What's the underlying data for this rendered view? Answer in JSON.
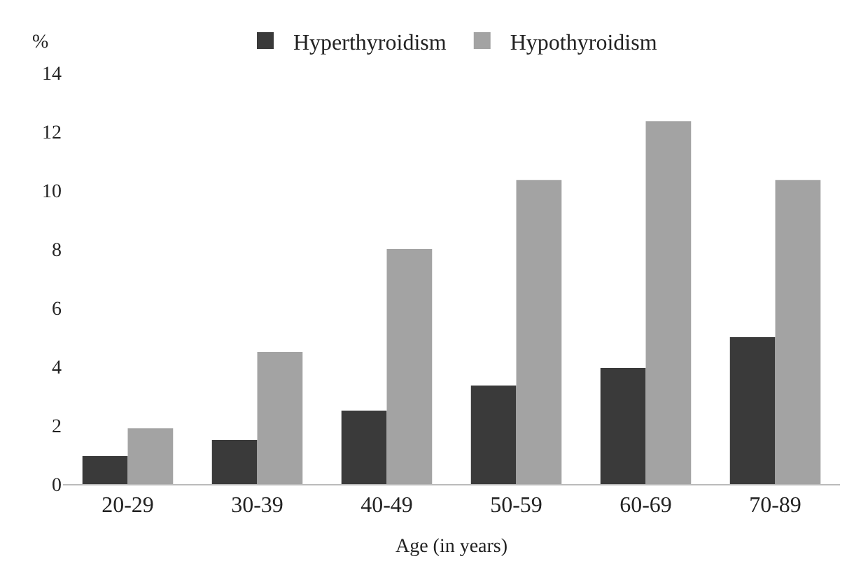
{
  "chart_data": {
    "type": "bar",
    "xlabel": "Age (in years)",
    "ylabel": "%",
    "categories": [
      "20-29",
      "30-39",
      "40-49",
      "50-59",
      "60-69",
      "70-89"
    ],
    "series": [
      {
        "name": "Hyperthyroidism",
        "color": "#3a3a3a",
        "values": [
          0.95,
          1.5,
          2.5,
          3.35,
          3.95,
          5.0
        ]
      },
      {
        "name": "Hypothyroidism",
        "color": "#a3a3a3",
        "values": [
          1.9,
          4.5,
          8.0,
          10.35,
          12.35,
          10.35
        ]
      }
    ],
    "ylim": [
      0,
      14
    ],
    "yticks": [
      0,
      2,
      4,
      6,
      8,
      10,
      12,
      14
    ],
    "legend": "top"
  }
}
